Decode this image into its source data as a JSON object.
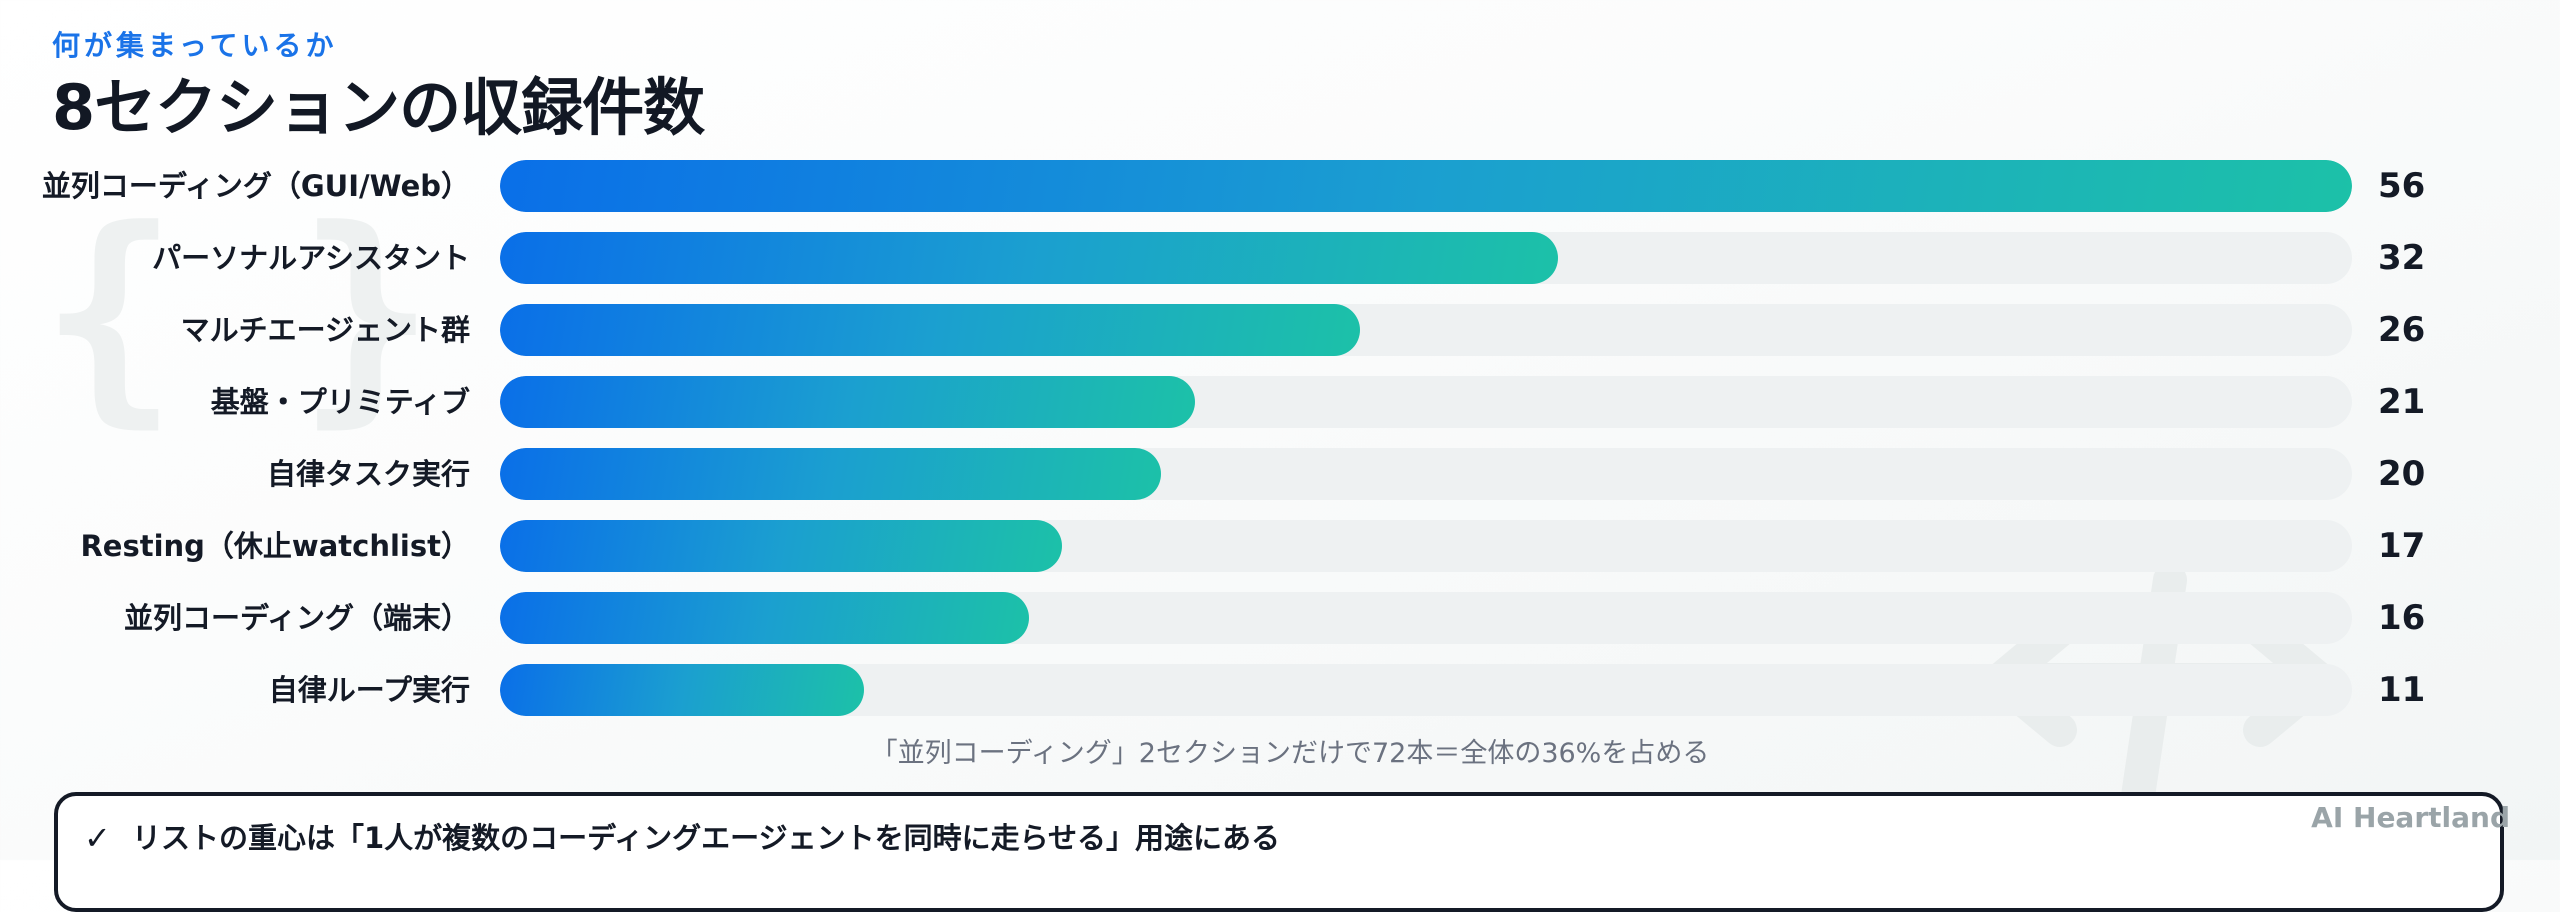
{
  "header": {
    "eyebrow": "何が集まっているか",
    "title": "8セクションの収録件数"
  },
  "chart_data": {
    "type": "bar",
    "orientation": "horizontal",
    "categories": [
      "並列コーディング（GUI/Web）",
      "パーソナルアシスタント",
      "マルチエージェント群",
      "基盤・プリミティブ",
      "自律タスク実行",
      "Resting（休止watchlist）",
      "並列コーディング（端末）",
      "自律ループ実行"
    ],
    "values": [
      56,
      32,
      26,
      21,
      20,
      17,
      16,
      11
    ],
    "xlim": [
      0,
      56
    ],
    "grid": false,
    "legend": "none",
    "colors": {
      "gradient_start": "#0a6fe8",
      "gradient_end": "#1cc1a8",
      "track": "#eef1f2"
    }
  },
  "caption": "「並列コーディング」2セクションだけで72本＝全体の36%を占める",
  "callout": {
    "check_icon": "✓",
    "text": "リストの重心は「1人が複数のコーディングエージェントを同時に走らせる」用途にある"
  },
  "brand": "AI Heartland",
  "decor": {
    "braces_glyph": "{ }"
  }
}
